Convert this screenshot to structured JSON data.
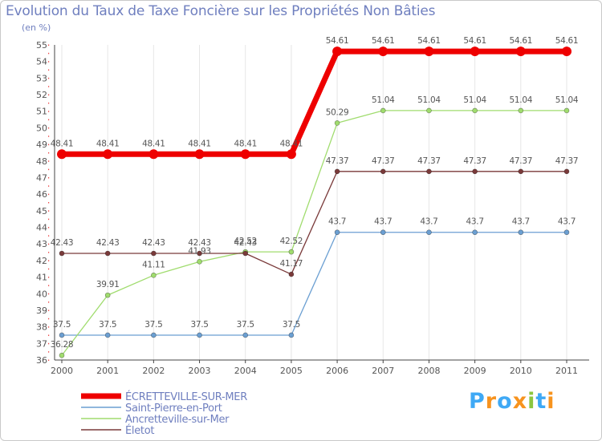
{
  "chart_data": {
    "type": "line",
    "title": "Evolution du Taux de Taxe Foncière sur les Propriétés Non Bâties",
    "ylabel": "(en %)",
    "xlabel": "",
    "x": [
      "2000",
      "2001",
      "2002",
      "2003",
      "2004",
      "2005",
      "2006",
      "2007",
      "2008",
      "2009",
      "2010",
      "2011"
    ],
    "ylim": [
      36,
      55
    ],
    "yticks": [
      36,
      37,
      38,
      39,
      40,
      41,
      42,
      43,
      44,
      45,
      46,
      47,
      48,
      49,
      50,
      51,
      52,
      53,
      54,
      55
    ],
    "series": [
      {
        "name": "ÉCRETTEVILLE-SUR-MER",
        "color": "#ee0000",
        "values": [
          48.41,
          48.41,
          48.41,
          48.41,
          48.41,
          48.41,
          54.61,
          54.61,
          54.61,
          54.61,
          54.61,
          54.61
        ],
        "labels": [
          "48.41",
          "48.41",
          "48.41",
          "48.41",
          "48.41",
          "48.41",
          "54.61",
          "54.61",
          "54.61",
          "54.61",
          "54.61",
          "54.61"
        ]
      },
      {
        "name": "Saint-Pierre-en-Port",
        "color": "#6b9fd2",
        "values": [
          37.5,
          37.5,
          37.5,
          37.5,
          37.5,
          37.5,
          43.7,
          43.7,
          43.7,
          43.7,
          43.7,
          43.7
        ],
        "labels": [
          "37.5",
          "37.5",
          "37.5",
          "37.5",
          "37.5",
          "37.5",
          "43.7",
          "43.7",
          "43.7",
          "43.7",
          "43.7",
          "43.7"
        ]
      },
      {
        "name": "Ancretteville-sur-Mer",
        "color": "#a0dc6e",
        "values": [
          36.28,
          39.91,
          41.11,
          41.93,
          42.52,
          42.52,
          50.29,
          51.04,
          51.04,
          51.04,
          51.04,
          51.04
        ],
        "labels": [
          "36.28",
          "39.91",
          "41.11",
          "41.93",
          "42.52",
          "42.52",
          "50.29",
          "51.04",
          "51.04",
          "51.04",
          "51.04",
          "51.04"
        ]
      },
      {
        "name": "Életot",
        "color": "#7a3a3a",
        "values": [
          42.43,
          42.43,
          42.43,
          42.43,
          42.43,
          41.17,
          47.37,
          47.37,
          47.37,
          47.37,
          47.37,
          47.37
        ],
        "labels": [
          "42.43",
          "42.43",
          "42.43",
          "42.43",
          "42.43",
          "41.17",
          "47.37",
          "47.37",
          "47.37",
          "47.37",
          "47.37",
          "47.37"
        ]
      }
    ],
    "legend_position": "bottom-left"
  },
  "brand": {
    "letters": [
      "P",
      "r",
      "o",
      "x",
      "i",
      "t",
      "i"
    ],
    "colors": [
      "#3fa9f5",
      "#f7931e",
      "#3fa9f5",
      "#f7931e",
      "#8cc63f",
      "#3fa9f5",
      "#f7931e"
    ]
  }
}
